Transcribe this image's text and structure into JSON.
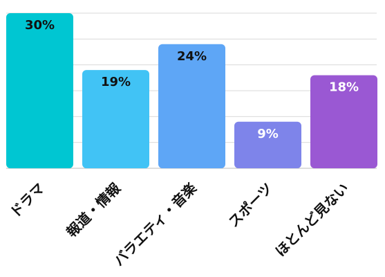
{
  "chart_data": {
    "type": "bar",
    "title": "",
    "xlabel": "",
    "ylabel": "",
    "categories": [
      "ドラマ",
      "報道・情報",
      "バラエティ・音楽",
      "スポーツ",
      "ほとんど見ない"
    ],
    "values": [
      30,
      19,
      24,
      9,
      18
    ],
    "value_labels": [
      "30%",
      "19%",
      "24%",
      "9%",
      "18%"
    ],
    "ylim": [
      0,
      30
    ],
    "grid": true,
    "colors": [
      "#00C6D2",
      "#41C3F5",
      "#5EA6F6",
      "#7E84EA",
      "#9A58D3"
    ],
    "label_colors": [
      "#111111",
      "#111111",
      "#111111",
      "#ffffff",
      "#ffffff"
    ]
  }
}
